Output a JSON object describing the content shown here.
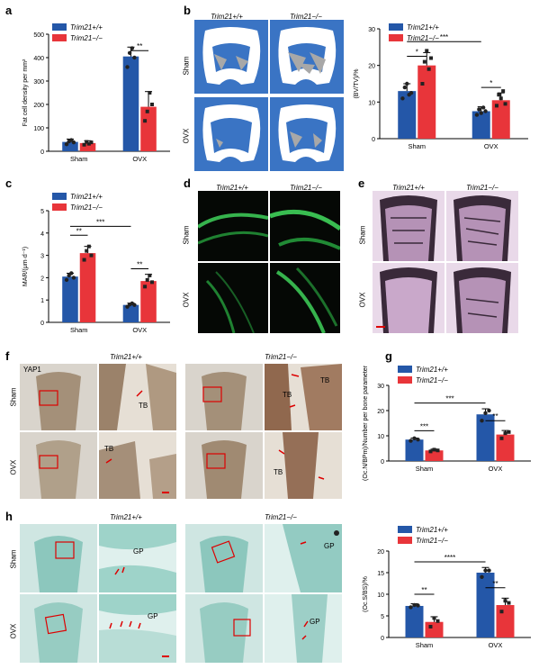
{
  "legend": {
    "wt": "Trim21+/+",
    "ko": "Trim21−/−",
    "wt_color": "#2457a8",
    "ko_color": "#e8353a"
  },
  "columns": {
    "wt": "Trim21+/+",
    "ko": "Trim21−/−"
  },
  "rows": {
    "sham": "Sham",
    "ovx": "OVX"
  },
  "panels": {
    "a": "a",
    "b": "b",
    "c": "c",
    "d": "d",
    "e": "e",
    "f": "f",
    "g": "g",
    "h": "h"
  },
  "stain_label_f": "YAP1",
  "annotations": {
    "tb": "TB",
    "gp": "GP"
  },
  "chart_data": [
    {
      "id": "a",
      "type": "bar",
      "categories": [
        "Sham",
        "OVX"
      ],
      "series": [
        {
          "name": "Trim21+/+",
          "values": [
            40,
            405
          ],
          "error": [
            12,
            40
          ],
          "points": [
            [
              30,
              42,
              48,
              38
            ],
            [
              360,
              420,
              440,
              400
            ]
          ]
        },
        {
          "name": "Trim21−/−",
          "values": [
            35,
            190
          ],
          "error": [
            10,
            65
          ],
          "points": [
            [
              28,
              40,
              32,
              38
            ],
            [
              130,
              170,
              250,
              200
            ]
          ]
        }
      ],
      "ylabel": "Fat cell density per mm²",
      "ylim": [
        0,
        500
      ],
      "yticks": [
        0,
        100,
        200,
        300,
        400,
        500
      ],
      "significance": [
        {
          "label": "**",
          "between": "OVX wt vs OVX ko"
        }
      ]
    },
    {
      "id": "b",
      "type": "bar",
      "categories": [
        "Sham",
        "OVX"
      ],
      "series": [
        {
          "name": "Trim21+/+",
          "values": [
            13,
            7.5
          ],
          "error": [
            2,
            1.2
          ],
          "points": [
            [
              11,
              14,
              15,
              12,
              12.5
            ],
            [
              6.5,
              8,
              7,
              8.5,
              7.5
            ]
          ]
        },
        {
          "name": "Trim21−/−",
          "values": [
            20,
            10.5
          ],
          "error": [
            3.5,
            2
          ],
          "points": [
            [
              15,
              21,
              24,
              19,
              22
            ],
            [
              9,
              12,
              11,
              13,
              9.5
            ]
          ]
        }
      ],
      "ylabel": "(BV/TV)/%",
      "ylim": [
        0,
        30
      ],
      "yticks": [
        0,
        10,
        20,
        30
      ],
      "significance": [
        {
          "label": "*"
        },
        {
          "label": "***"
        },
        {
          "label": "*"
        }
      ]
    },
    {
      "id": "c",
      "type": "bar",
      "categories": [
        "Sham",
        "OVX"
      ],
      "series": [
        {
          "name": "Trim21+/+",
          "values": [
            2.05,
            0.78
          ],
          "error": [
            0.15,
            0.08
          ],
          "points": [
            [
              1.9,
              2.1,
              2.2,
              2.0
            ],
            [
              0.7,
              0.8,
              0.85,
              0.78
            ]
          ]
        },
        {
          "name": "Trim21−/−",
          "values": [
            3.1,
            1.85
          ],
          "error": [
            0.3,
            0.3
          ],
          "points": [
            [
              2.8,
              3.2,
              3.4,
              3.0
            ],
            [
              1.6,
              1.9,
              2.1,
              1.8
            ]
          ]
        }
      ],
      "ylabel": "MAR/(μm·d⁻¹)",
      "ylim": [
        0,
        5
      ],
      "yticks": [
        0,
        1,
        2,
        3,
        4,
        5
      ],
      "significance": [
        {
          "label": "**"
        },
        {
          "label": "***"
        },
        {
          "label": "**"
        }
      ]
    },
    {
      "id": "g",
      "type": "bar",
      "categories": [
        "Sham",
        "OVX"
      ],
      "series": [
        {
          "name": "Trim21+/+",
          "values": [
            8.5,
            18.5
          ],
          "error": [
            0.6,
            2.2
          ],
          "points": [
            [
              8,
              9,
              8.5
            ],
            [
              16,
              19,
              20
            ]
          ]
        },
        {
          "name": "Trim21−/−",
          "values": [
            4.2,
            10.5
          ],
          "error": [
            0.5,
            1.6
          ],
          "points": [
            [
              3.8,
              4.5,
              4.2
            ],
            [
              9,
              11,
              11.5
            ]
          ]
        }
      ],
      "ylabel": "(Oc.N/BPm)/Number per bone parameter",
      "ylim": [
        0,
        30
      ],
      "yticks": [
        0,
        10,
        20,
        30
      ],
      "significance": [
        {
          "label": "***"
        },
        {
          "label": "***"
        },
        {
          "label": "**"
        }
      ]
    },
    {
      "id": "h",
      "type": "bar",
      "categories": [
        "Sham",
        "OVX"
      ],
      "series": [
        {
          "name": "Trim21+/+",
          "values": [
            7.3,
            15
          ],
          "error": [
            0.5,
            1.2
          ],
          "points": [
            [
              7,
              7.5,
              7.4
            ],
            [
              14,
              15.5,
              15.5
            ]
          ]
        },
        {
          "name": "Trim21−/−",
          "values": [
            3.6,
            7.5
          ],
          "error": [
            1.2,
            1.6
          ],
          "points": [
            [
              2.5,
              4.5,
              3.8
            ],
            [
              6,
              8.5,
              8
            ]
          ]
        }
      ],
      "ylabel": "(Oc.S/BS)/%",
      "ylim": [
        0,
        20
      ],
      "yticks": [
        0,
        5,
        10,
        15,
        20
      ],
      "significance": [
        {
          "label": "**"
        },
        {
          "label": "****"
        },
        {
          "label": "**"
        }
      ]
    }
  ]
}
